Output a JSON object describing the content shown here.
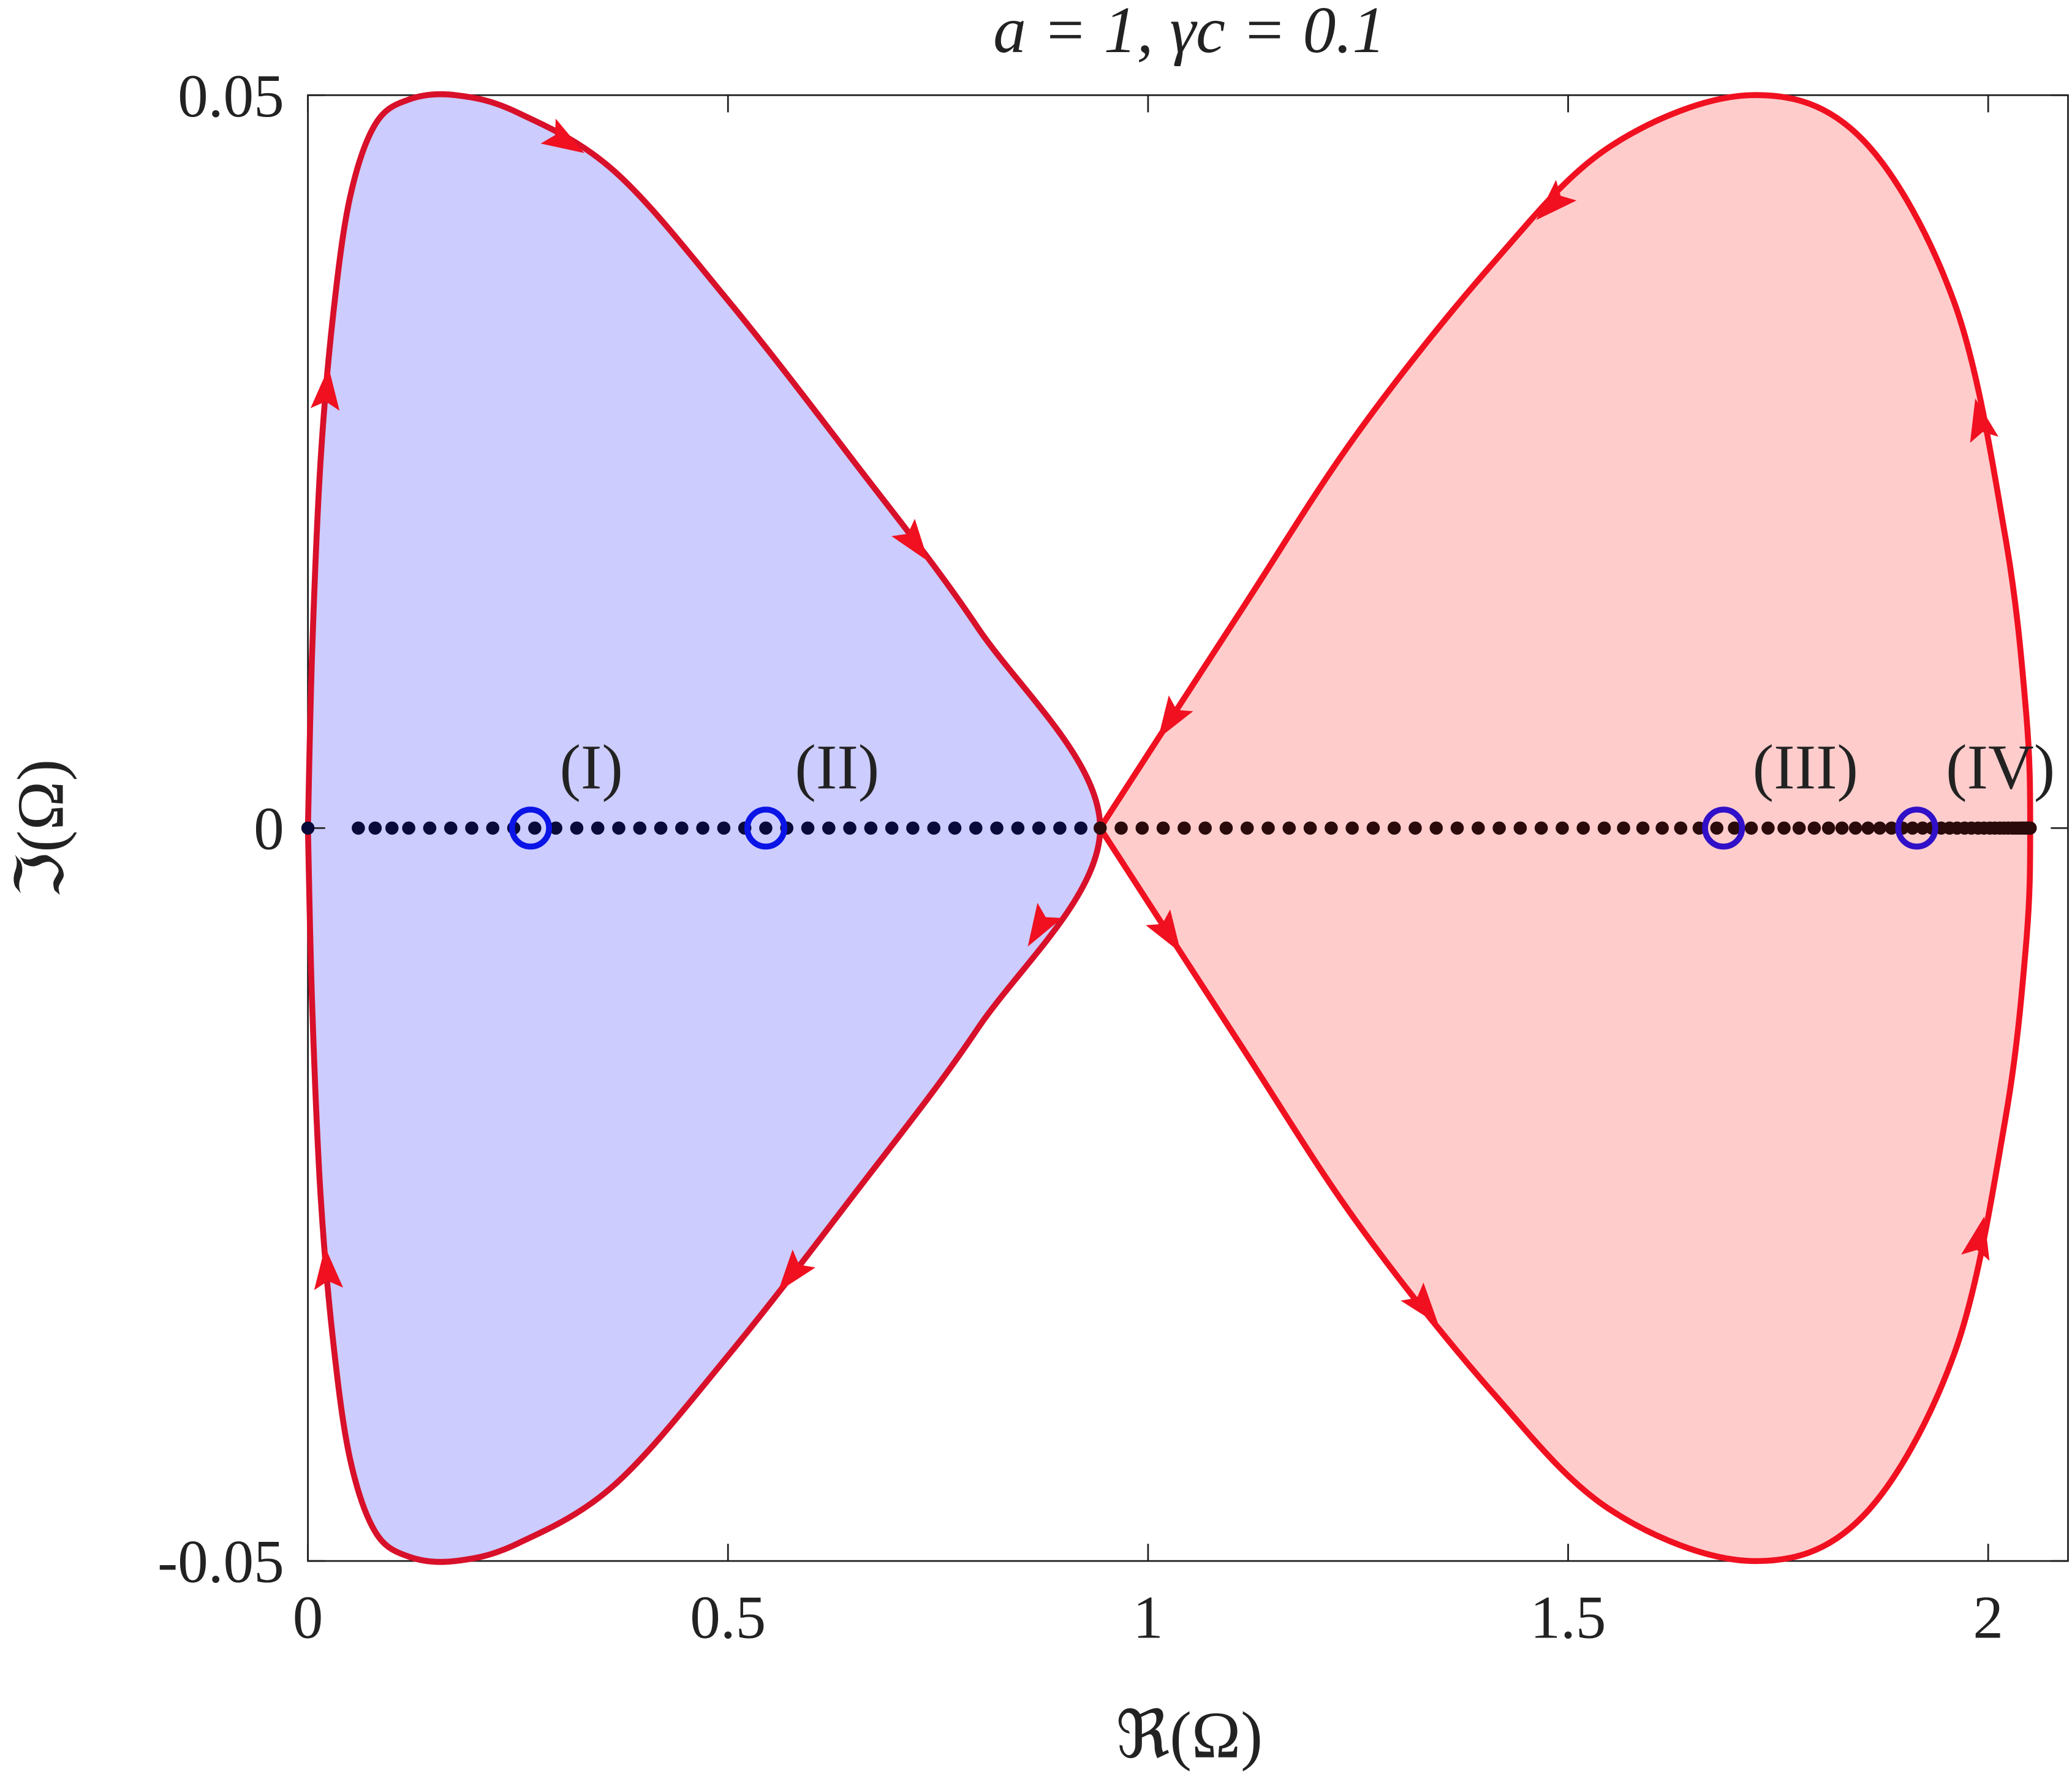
{
  "chart_data": {
    "type": "contour-loops",
    "title": "a = 1, γc = 0.1",
    "xlabel": "ℜ(Ω)",
    "ylabel": "ℑ(Ω)",
    "xlim": [
      0,
      2.095
    ],
    "ylim": [
      -0.05,
      0.05
    ],
    "xticks": [
      0,
      0.5,
      1,
      1.5,
      2
    ],
    "yticks": [
      -0.05,
      0,
      0.05
    ],
    "loops": [
      {
        "color": "#d8102a",
        "fill": "#ccccff",
        "x": [
          0,
          0.005,
          0.015,
          0.03,
          0.05,
          0.08,
          0.12,
          0.176,
          0.25,
          0.365,
          0.5,
          0.65,
          0.797,
          0.943,
          0.797,
          0.65,
          0.5,
          0.365,
          0.25,
          0.176,
          0.12,
          0.08,
          0.05,
          0.03,
          0.015,
          0.005,
          0
        ],
        "y": [
          0,
          0.012,
          0.025,
          0.035,
          0.043,
          0.048,
          0.0497,
          0.05,
          0.0488,
          0.0448,
          0.036,
          0.025,
          0.0137,
          0,
          -0.0137,
          -0.025,
          -0.036,
          -0.0448,
          -0.0488,
          -0.05,
          -0.0497,
          -0.048,
          -0.043,
          -0.035,
          -0.025,
          -0.012,
          0
        ]
      },
      {
        "color": "#f01020",
        "fill": "#ffcccc",
        "x": [
          0.943,
          1.108,
          1.25,
          1.41,
          1.55,
          1.717,
          1.85,
          1.96,
          2.02,
          2.045,
          2.05,
          2.045,
          2.02,
          1.96,
          1.85,
          1.717,
          1.55,
          1.41,
          1.25,
          1.108,
          0.943
        ],
        "y": [
          0,
          -0.0146,
          -0.027,
          -0.0385,
          -0.0465,
          -0.05,
          -0.047,
          -0.0358,
          -0.02,
          -0.008,
          0,
          0.008,
          0.02,
          0.0358,
          0.047,
          0.05,
          0.0465,
          0.0385,
          0.027,
          0.0146,
          0
        ]
      }
    ],
    "series": [
      {
        "color": "#0a0a3a",
        "x": [
          0,
          0.06,
          0.08,
          0.1,
          0.12,
          0.145,
          0.17,
          0.195,
          0.22,
          0.245,
          0.27,
          0.295,
          0.32,
          0.345,
          0.37,
          0.395,
          0.42,
          0.445,
          0.47,
          0.495,
          0.52,
          0.545,
          0.57,
          0.595,
          0.62,
          0.645,
          0.67,
          0.695,
          0.72,
          0.745,
          0.77,
          0.795,
          0.82,
          0.845,
          0.87,
          0.895,
          0.92
        ],
        "y": [
          0,
          0,
          0,
          0,
          0,
          0,
          0,
          0,
          0,
          0,
          0,
          0,
          0,
          0,
          0,
          0,
          0,
          0,
          0,
          0,
          0,
          0,
          0,
          0,
          0,
          0,
          0,
          0,
          0,
          0,
          0,
          0,
          0,
          0,
          0,
          0,
          0
        ]
      },
      {
        "color": "#2a0a0a",
        "x": [
          0.943,
          0.968,
          0.993,
          1.018,
          1.043,
          1.068,
          1.093,
          1.118,
          1.143,
          1.168,
          1.193,
          1.218,
          1.243,
          1.268,
          1.293,
          1.318,
          1.343,
          1.368,
          1.393,
          1.418,
          1.443,
          1.468,
          1.493,
          1.518,
          1.543,
          1.566,
          1.589,
          1.612,
          1.634,
          1.656,
          1.677,
          1.698,
          1.718,
          1.738,
          1.757,
          1.775,
          1.793,
          1.81,
          1.826,
          1.842,
          1.857,
          1.871,
          1.885,
          1.898,
          1.91,
          1.922,
          1.933,
          1.944,
          1.954,
          1.963,
          1.972,
          1.98,
          1.988,
          1.995,
          2.002,
          2.008,
          2.014,
          2.019,
          2.024,
          2.029,
          2.033,
          2.037,
          2.04,
          2.043,
          2.046,
          2.048,
          2.05
        ],
        "y": [
          0,
          0,
          0,
          0,
          0,
          0,
          0,
          0,
          0,
          0,
          0,
          0,
          0,
          0,
          0,
          0,
          0,
          0,
          0,
          0,
          0,
          0,
          0,
          0,
          0,
          0,
          0,
          0,
          0,
          0,
          0,
          0,
          0,
          0,
          0,
          0,
          0,
          0,
          0,
          0,
          0,
          0,
          0,
          0,
          0,
          0,
          0,
          0,
          0,
          0,
          0,
          0,
          0,
          0,
          0,
          0,
          0,
          0,
          0,
          0,
          0,
          0,
          0,
          0,
          0,
          0,
          0
        ]
      }
    ],
    "markers": [
      {
        "label": "(I)",
        "x": 0.265,
        "y": 0,
        "color": "#0a14e6"
      },
      {
        "label": "(II)",
        "x": 0.545,
        "y": 0,
        "color": "#0a14e6"
      },
      {
        "label": "(III)",
        "x": 1.685,
        "y": 0,
        "color": "#3010c8"
      },
      {
        "label": "(IV)",
        "x": 1.915,
        "y": 0,
        "color": "#3010c8"
      }
    ]
  }
}
